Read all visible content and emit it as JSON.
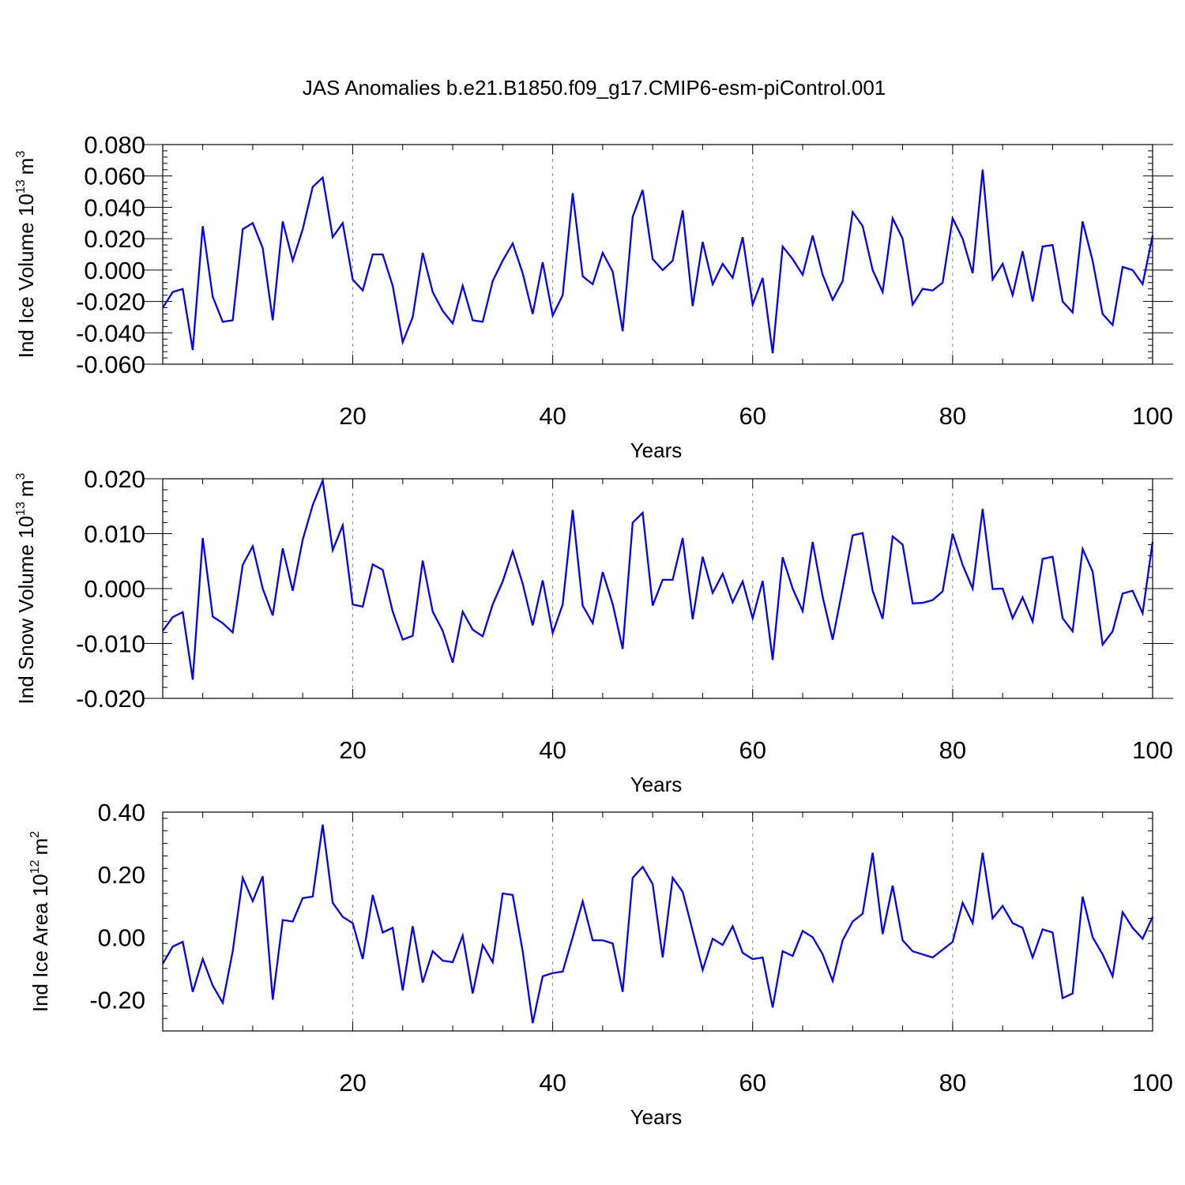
{
  "title": "JAS Anomalies b.e21.B1850.f09_g17.CMIP6-esm-piControl.001",
  "chart_data": [
    {
      "type": "line",
      "title": "JAS Anomalies b.e21.B1850.f09_g17.CMIP6-esm-piControl.001",
      "xlabel": "Years",
      "ylabel": "Ind Ice Volume 10",
      "ylabel_exp": "13",
      "ylabel_unit": "m",
      "ylabel_unit_exp": "3",
      "xlim": [
        1,
        100
      ],
      "ylim": [
        -0.06,
        0.08
      ],
      "yticks": [
        -0.06,
        -0.04,
        -0.02,
        0.0,
        0.02,
        0.04,
        0.06,
        0.08
      ],
      "ytick_labels": [
        "-0.060",
        "-0.040",
        "-0.020",
        "0.000",
        "0.020",
        "0.040",
        "0.060",
        "0.080"
      ],
      "xticks": [
        20,
        40,
        60,
        80,
        100
      ],
      "xtick_labels": [
        "20",
        "40",
        "60",
        "80",
        "100"
      ],
      "grid": "vertical dashed at major x ticks",
      "color": "#0000ff",
      "series": [
        {
          "name": "Ind Ice Volume",
          "values": [
            -0.024,
            -0.014,
            -0.012,
            -0.051,
            0.028,
            -0.017,
            -0.033,
            -0.032,
            0.026,
            0.03,
            0.014,
            -0.032,
            0.031,
            0.006,
            0.026,
            0.053,
            0.059,
            0.021,
            0.03,
            -0.006,
            -0.013,
            0.01,
            0.01,
            -0.01,
            -0.046,
            -0.03,
            0.011,
            -0.014,
            -0.026,
            -0.034,
            -0.01,
            -0.032,
            -0.033,
            -0.007,
            0.006,
            0.017,
            -0.002,
            -0.028,
            0.005,
            -0.029,
            -0.016,
            0.049,
            -0.004,
            -0.009,
            0.011,
            -0.001,
            -0.039,
            0.034,
            0.051,
            0.007,
            0.0,
            0.006,
            0.038,
            -0.023,
            0.018,
            -0.009,
            0.004,
            -0.005,
            0.021,
            -0.022,
            -0.005,
            -0.053,
            0.015,
            0.007,
            -0.003,
            0.022,
            -0.003,
            -0.019,
            -0.007,
            0.037,
            0.028,
            0.0,
            -0.014,
            0.033,
            0.02,
            -0.022,
            -0.012,
            -0.013,
            -0.008,
            0.033,
            0.02,
            -0.002,
            0.064,
            -0.006,
            0.004,
            -0.016,
            0.012,
            -0.02,
            0.015,
            0.016,
            -0.02,
            -0.027,
            0.031,
            0.006,
            -0.028,
            -0.035,
            0.002,
            0.0,
            -0.009,
            0.022
          ]
        }
      ]
    },
    {
      "type": "line",
      "xlabel": "Years",
      "ylabel": "Ind Snow Volume 10",
      "ylabel_exp": "13",
      "ylabel_unit": "m",
      "ylabel_unit_exp": "3",
      "xlim": [
        1,
        100
      ],
      "ylim": [
        -0.02,
        0.02
      ],
      "yticks": [
        -0.02,
        -0.01,
        0.0,
        0.01,
        0.02
      ],
      "ytick_labels": [
        "-0.020",
        "-0.010",
        "0.000",
        "0.010",
        "0.020"
      ],
      "xticks": [
        20,
        40,
        60,
        80,
        100
      ],
      "xtick_labels": [
        "20",
        "40",
        "60",
        "80",
        "100"
      ],
      "grid": "vertical dashed at major x ticks",
      "color": "#0000ff",
      "series": [
        {
          "name": "Ind Snow Volume",
          "values": [
            -0.0077,
            -0.0052,
            -0.0043,
            -0.0166,
            0.0092,
            -0.0051,
            -0.0063,
            -0.008,
            0.0043,
            0.0077,
            0.0,
            -0.0049,
            0.0073,
            -0.0004,
            0.0089,
            0.0152,
            0.0197,
            0.007,
            0.0115,
            -0.0029,
            -0.0033,
            0.0044,
            0.0034,
            -0.0042,
            -0.0093,
            -0.0086,
            0.0051,
            -0.0042,
            -0.0077,
            -0.0135,
            -0.0042,
            -0.0075,
            -0.0087,
            -0.0029,
            0.0013,
            0.0068,
            0.0009,
            -0.0067,
            0.0015,
            -0.0081,
            -0.0029,
            0.0143,
            -0.0031,
            -0.0063,
            0.003,
            -0.0028,
            -0.011,
            0.012,
            0.0138,
            -0.0031,
            0.0016,
            0.0016,
            0.0092,
            -0.0056,
            0.0058,
            -0.0008,
            0.0027,
            -0.0025,
            0.0013,
            -0.0054,
            0.0014,
            -0.013,
            0.0057,
            0.0,
            -0.0041,
            0.0085,
            -0.0015,
            -0.0093,
            0.0,
            0.0097,
            0.0101,
            -0.0004,
            -0.0055,
            0.0095,
            0.008,
            -0.0027,
            -0.0026,
            -0.0021,
            -0.0005,
            0.01,
            0.0043,
            0.0,
            0.0145,
            -0.0001,
            0.0,
            -0.0054,
            -0.0016,
            -0.006,
            0.0054,
            0.0058,
            -0.0054,
            -0.0078,
            0.0072,
            0.0031,
            -0.0102,
            -0.0078,
            -0.0009,
            -0.0004,
            -0.0045,
            0.0085
          ]
        }
      ]
    },
    {
      "type": "line",
      "xlabel": "Years",
      "ylabel": "Ind Ice Area 10",
      "ylabel_exp": "12",
      "ylabel_unit": "m",
      "ylabel_unit_exp": "2",
      "xlim": [
        1,
        100
      ],
      "ylim": [
        -0.3,
        0.4
      ],
      "yticks": [
        -0.2,
        0.0,
        0.2,
        0.4
      ],
      "ytick_labels": [
        "-0.20",
        "0.00",
        "0.20",
        "0.40"
      ],
      "xticks": [
        20,
        40,
        60,
        80,
        100
      ],
      "xtick_labels": [
        "20",
        "40",
        "60",
        "80",
        "100"
      ],
      "grid": "vertical dashed at major x ticks",
      "color": "#0000ff",
      "series": [
        {
          "name": "Ind Ice Area",
          "values": [
            -0.085,
            -0.03,
            -0.015,
            -0.175,
            -0.07,
            -0.155,
            -0.21,
            -0.045,
            0.19,
            0.115,
            0.195,
            -0.2,
            0.055,
            0.05,
            0.125,
            0.13,
            0.36,
            0.11,
            0.065,
            0.045,
            -0.07,
            0.135,
            0.015,
            0.03,
            -0.17,
            0.035,
            -0.145,
            -0.045,
            -0.075,
            -0.08,
            0.005,
            -0.18,
            -0.025,
            -0.08,
            0.14,
            0.135,
            -0.045,
            -0.275,
            -0.125,
            -0.115,
            -0.11,
            0.0,
            0.115,
            -0.01,
            -0.01,
            -0.02,
            -0.175,
            0.19,
            0.225,
            0.17,
            -0.065,
            0.19,
            0.145,
            0.02,
            -0.105,
            -0.005,
            -0.025,
            0.035,
            -0.05,
            -0.07,
            -0.065,
            -0.225,
            -0.045,
            -0.06,
            0.02,
            0.0,
            -0.055,
            -0.14,
            -0.01,
            0.05,
            0.075,
            0.27,
            0.01,
            0.165,
            -0.01,
            -0.045,
            -0.055,
            -0.065,
            -0.04,
            -0.015,
            0.11,
            0.045,
            0.27,
            0.06,
            0.1,
            0.045,
            0.03,
            -0.065,
            0.025,
            0.015,
            -0.195,
            -0.18,
            0.13,
            0.0,
            -0.055,
            -0.125,
            0.08,
            0.03,
            -0.005,
            0.065
          ]
        }
      ]
    }
  ]
}
